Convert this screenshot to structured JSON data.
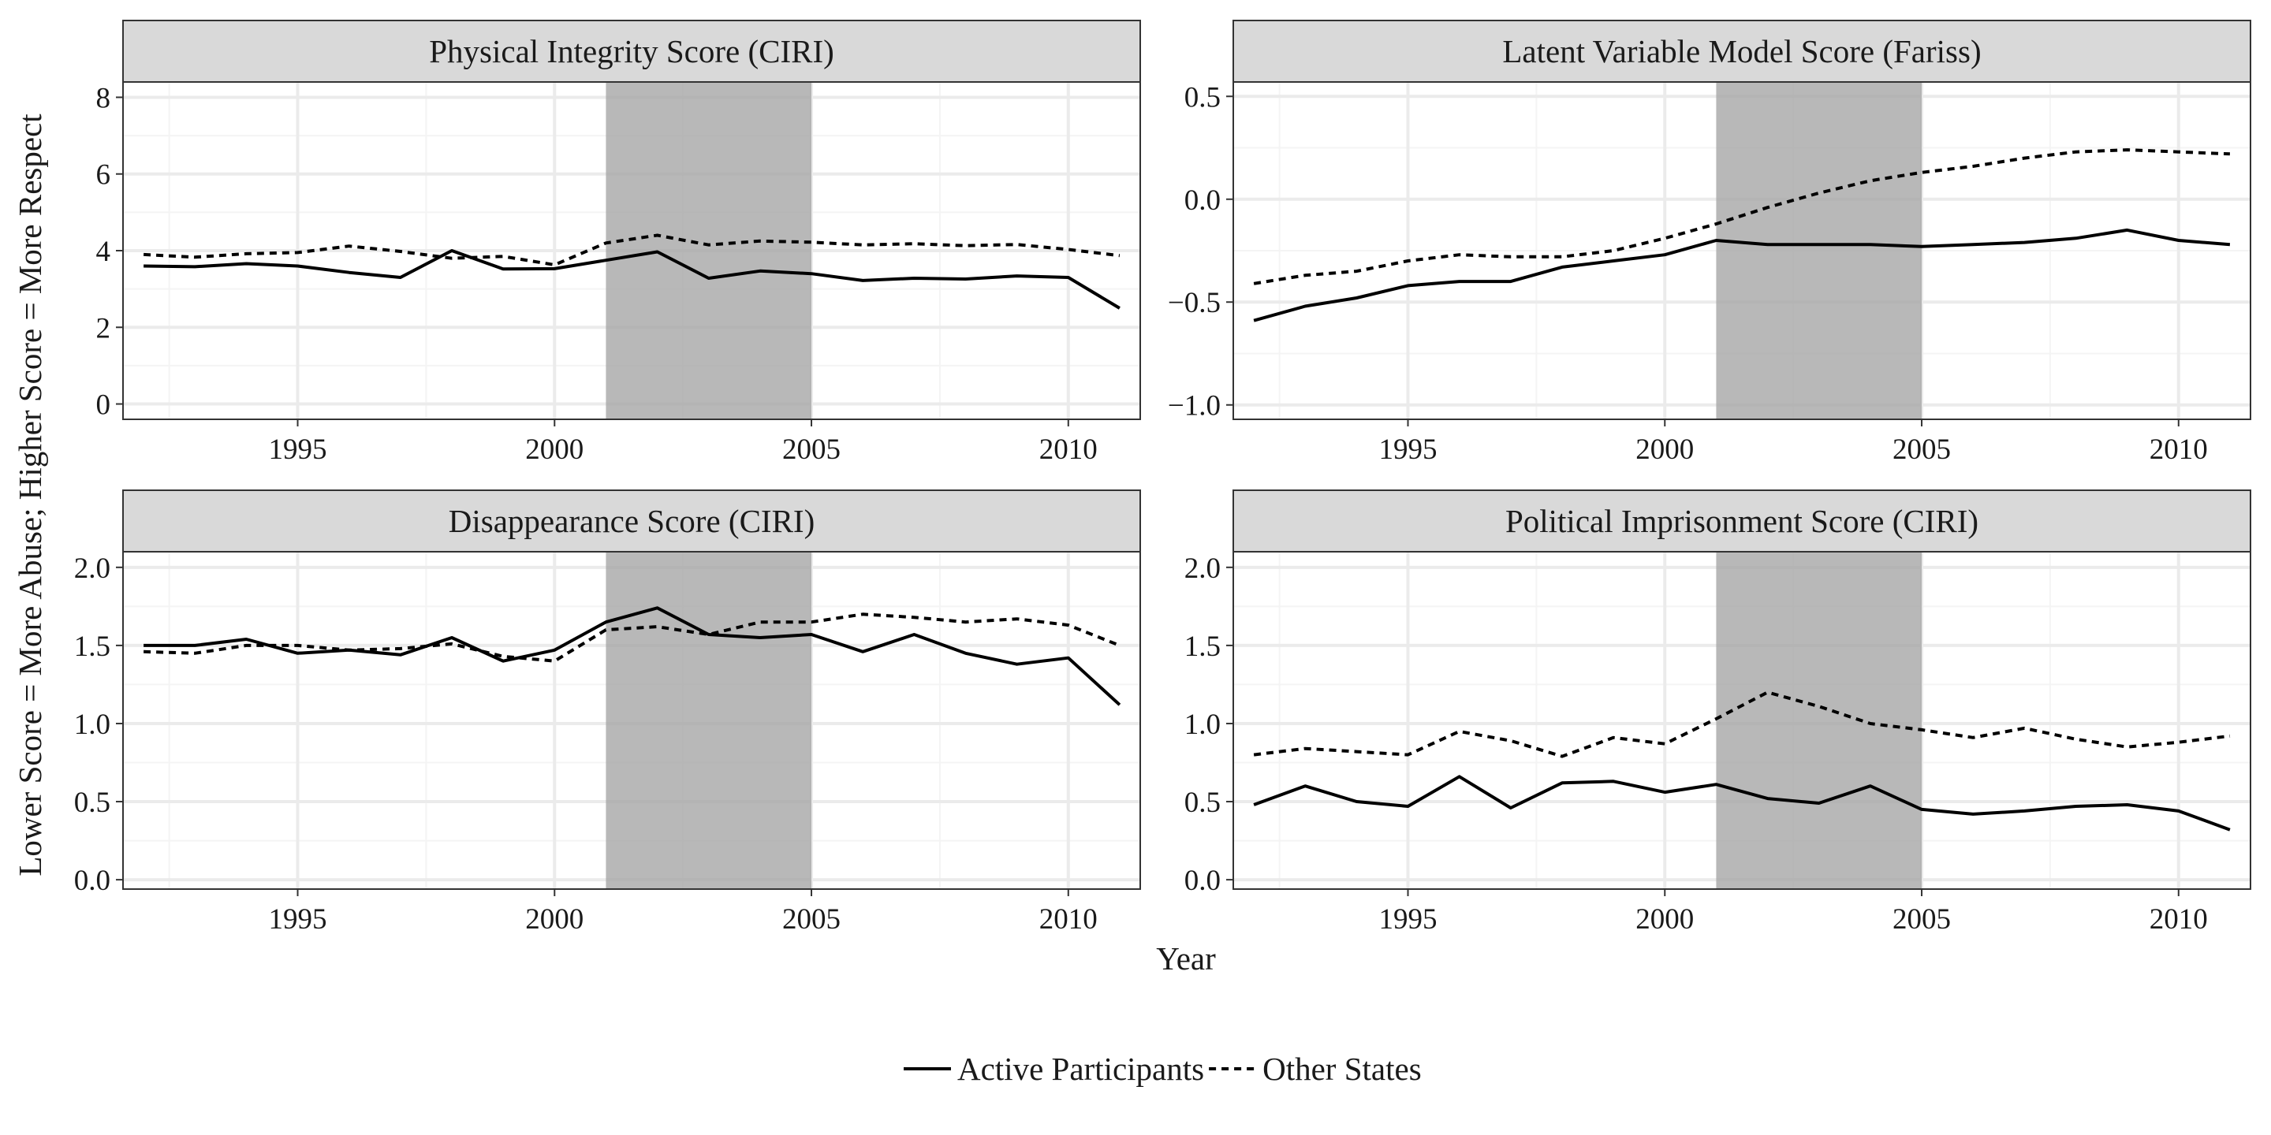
{
  "figure": {
    "xlabel": "Year",
    "ylabel": "Lower Score = More Abuse; Higher Score = More Respect"
  },
  "legend": {
    "position": "bottom",
    "items": [
      {
        "label": "Active Participants",
        "linetype": "solid"
      },
      {
        "label": "Other States",
        "linetype": "dashed"
      }
    ]
  },
  "colors": {
    "line": "#000000",
    "shade": "#a6a6a6",
    "strip_background": "#d9d9d9",
    "grid_major": "#ebebeb",
    "grid_minor": "#f4f4f4",
    "panel_border": "#333333"
  },
  "chart_data": [
    {
      "type": "line",
      "title": "Physical Integrity Score (CIRI)",
      "x": [
        1992,
        1993,
        1994,
        1995,
        1996,
        1997,
        1998,
        1999,
        2000,
        2001,
        2002,
        2003,
        2004,
        2005,
        2006,
        2007,
        2008,
        2009,
        2010,
        2011
      ],
      "xlim": [
        1991.6,
        2011.4
      ],
      "xticks": [
        1995,
        2000,
        2005,
        2010
      ],
      "ylim": [
        -0.4,
        8.4
      ],
      "yticks": [
        0,
        2,
        4,
        6,
        8
      ],
      "shaded_region": [
        2001,
        2005
      ],
      "grid": true,
      "series": [
        {
          "name": "Active Participants",
          "linetype": "solid",
          "values": [
            3.6,
            3.58,
            3.66,
            3.6,
            3.43,
            3.3,
            4.0,
            3.52,
            3.53,
            3.75,
            3.97,
            3.28,
            3.47,
            3.4,
            3.22,
            3.28,
            3.26,
            3.34,
            3.3,
            2.5
          ]
        },
        {
          "name": "Other States",
          "linetype": "dashed",
          "values": [
            3.9,
            3.83,
            3.92,
            3.95,
            4.12,
            3.98,
            3.8,
            3.85,
            3.63,
            4.2,
            4.4,
            4.15,
            4.25,
            4.22,
            4.15,
            4.18,
            4.13,
            4.16,
            4.03,
            3.87
          ]
        }
      ]
    },
    {
      "type": "line",
      "title": "Latent Variable Model Score (Fariss)",
      "x": [
        1992,
        1993,
        1994,
        1995,
        1996,
        1997,
        1998,
        1999,
        2000,
        2001,
        2002,
        2003,
        2004,
        2005,
        2006,
        2007,
        2008,
        2009,
        2010,
        2011
      ],
      "xlim": [
        1991.6,
        2011.4
      ],
      "xticks": [
        1995,
        2000,
        2005,
        2010
      ],
      "ylim": [
        -1.07,
        0.57
      ],
      "yticks": [
        -1.0,
        -0.5,
        0.0,
        0.5
      ],
      "shaded_region": [
        2001,
        2005
      ],
      "grid": true,
      "series": [
        {
          "name": "Active Participants",
          "linetype": "solid",
          "values": [
            -0.59,
            -0.52,
            -0.48,
            -0.42,
            -0.4,
            -0.4,
            -0.33,
            -0.3,
            -0.27,
            -0.2,
            -0.22,
            -0.22,
            -0.22,
            -0.23,
            -0.22,
            -0.21,
            -0.19,
            -0.15,
            -0.2,
            -0.22
          ]
        },
        {
          "name": "Other States",
          "linetype": "dashed",
          "values": [
            -0.41,
            -0.37,
            -0.35,
            -0.3,
            -0.27,
            -0.28,
            -0.28,
            -0.25,
            -0.19,
            -0.12,
            -0.04,
            0.03,
            0.09,
            0.13,
            0.16,
            0.2,
            0.23,
            0.24,
            0.23,
            0.22
          ]
        }
      ]
    },
    {
      "type": "line",
      "title": "Disappearance Score (CIRI)",
      "x": [
        1992,
        1993,
        1994,
        1995,
        1996,
        1997,
        1998,
        1999,
        2000,
        2001,
        2002,
        2003,
        2004,
        2005,
        2006,
        2007,
        2008,
        2009,
        2010,
        2011
      ],
      "xlim": [
        1991.6,
        2011.4
      ],
      "xticks": [
        1995,
        2000,
        2005,
        2010
      ],
      "ylim": [
        -0.06,
        2.1
      ],
      "yticks": [
        0.0,
        0.5,
        1.0,
        1.5,
        2.0
      ],
      "shaded_region": [
        2001,
        2005
      ],
      "grid": true,
      "series": [
        {
          "name": "Active Participants",
          "linetype": "solid",
          "values": [
            1.5,
            1.5,
            1.54,
            1.45,
            1.47,
            1.44,
            1.55,
            1.4,
            1.47,
            1.65,
            1.74,
            1.57,
            1.55,
            1.57,
            1.46,
            1.57,
            1.45,
            1.38,
            1.42,
            1.12
          ]
        },
        {
          "name": "Other States",
          "linetype": "dashed",
          "values": [
            1.46,
            1.45,
            1.5,
            1.5,
            1.47,
            1.48,
            1.51,
            1.43,
            1.4,
            1.6,
            1.62,
            1.57,
            1.65,
            1.65,
            1.7,
            1.68,
            1.65,
            1.67,
            1.63,
            1.5
          ]
        }
      ]
    },
    {
      "type": "line",
      "title": "Political Imprisonment Score (CIRI)",
      "x": [
        1992,
        1993,
        1994,
        1995,
        1996,
        1997,
        1998,
        1999,
        2000,
        2001,
        2002,
        2003,
        2004,
        2005,
        2006,
        2007,
        2008,
        2009,
        2010,
        2011
      ],
      "xlim": [
        1991.6,
        2011.4
      ],
      "xticks": [
        1995,
        2000,
        2005,
        2010
      ],
      "ylim": [
        -0.06,
        2.1
      ],
      "yticks": [
        0.0,
        0.5,
        1.0,
        1.5,
        2.0
      ],
      "shaded_region": [
        2001,
        2005
      ],
      "grid": true,
      "series": [
        {
          "name": "Active Participants",
          "linetype": "solid",
          "values": [
            0.48,
            0.6,
            0.5,
            0.47,
            0.66,
            0.46,
            0.62,
            0.63,
            0.56,
            0.61,
            0.52,
            0.49,
            0.6,
            0.45,
            0.42,
            0.44,
            0.47,
            0.48,
            0.44,
            0.32
          ]
        },
        {
          "name": "Other States",
          "linetype": "dashed",
          "values": [
            0.8,
            0.84,
            0.82,
            0.8,
            0.95,
            0.89,
            0.79,
            0.91,
            0.87,
            1.03,
            1.2,
            1.11,
            1.0,
            0.96,
            0.91,
            0.97,
            0.9,
            0.85,
            0.88,
            0.92
          ]
        }
      ]
    }
  ]
}
